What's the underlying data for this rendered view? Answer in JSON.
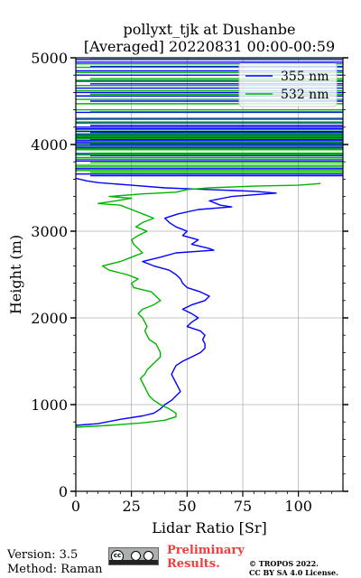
{
  "chart_data": {
    "type": "line",
    "title": [
      "pollyxt_tjk at Dushanbe",
      "[Averaged] 20220831 00:00-00:59"
    ],
    "xlabel": "Lidar Ratio [Sr]",
    "ylabel": "Height (m)",
    "xlim": [
      0,
      120
    ],
    "ylim": [
      0,
      5000
    ],
    "xticks": [
      0,
      25,
      50,
      75,
      100
    ],
    "yticks": [
      0,
      1000,
      2000,
      3000,
      4000,
      5000
    ],
    "grid": true,
    "legend_position": "top-right",
    "series": [
      {
        "name": "355 nm",
        "color": "#0000ff",
        "points": [
          [
            0,
            760
          ],
          [
            10,
            780
          ],
          [
            20,
            830
          ],
          [
            30,
            870
          ],
          [
            35,
            900
          ],
          [
            38,
            950
          ],
          [
            40,
            1000
          ],
          [
            43,
            1050
          ],
          [
            45,
            1100
          ],
          [
            47,
            1150
          ],
          [
            46,
            1200
          ],
          [
            45,
            1250
          ],
          [
            44,
            1300
          ],
          [
            43,
            1350
          ],
          [
            44,
            1400
          ],
          [
            45,
            1450
          ],
          [
            48,
            1500
          ],
          [
            52,
            1550
          ],
          [
            56,
            1600
          ],
          [
            58,
            1650
          ],
          [
            58,
            1700
          ],
          [
            57,
            1750
          ],
          [
            58,
            1800
          ],
          [
            56,
            1850
          ],
          [
            50,
            1900
          ],
          [
            52,
            1950
          ],
          [
            55,
            2000
          ],
          [
            52,
            2050
          ],
          [
            48,
            2100
          ],
          [
            52,
            2150
          ],
          [
            58,
            2200
          ],
          [
            60,
            2250
          ],
          [
            56,
            2300
          ],
          [
            50,
            2350
          ],
          [
            48,
            2400
          ],
          [
            47,
            2450
          ],
          [
            45,
            2500
          ],
          [
            42,
            2550
          ],
          [
            35,
            2600
          ],
          [
            30,
            2650
          ],
          [
            38,
            2700
          ],
          [
            45,
            2750
          ],
          [
            62,
            2780
          ],
          [
            60,
            2800
          ],
          [
            52,
            2850
          ],
          [
            55,
            2900
          ],
          [
            48,
            2950
          ],
          [
            50,
            3000
          ],
          [
            45,
            3050
          ],
          [
            42,
            3100
          ],
          [
            40,
            3150
          ],
          [
            46,
            3200
          ],
          [
            55,
            3250
          ],
          [
            70,
            3280
          ],
          [
            65,
            3300
          ],
          [
            60,
            3350
          ],
          [
            70,
            3400
          ],
          [
            80,
            3420
          ],
          [
            90,
            3440
          ],
          [
            80,
            3460
          ],
          [
            60,
            3480
          ],
          [
            40,
            3500
          ],
          [
            25,
            3530
          ],
          [
            10,
            3560
          ],
          [
            5,
            3580
          ],
          [
            0,
            3610
          ]
        ]
      },
      {
        "name": "532 nm",
        "color": "#00b400",
        "points": [
          [
            0,
            740
          ],
          [
            15,
            760
          ],
          [
            30,
            790
          ],
          [
            40,
            820
          ],
          [
            45,
            860
          ],
          [
            45,
            900
          ],
          [
            42,
            950
          ],
          [
            38,
            1000
          ],
          [
            35,
            1050
          ],
          [
            33,
            1100
          ],
          [
            32,
            1150
          ],
          [
            31,
            1200
          ],
          [
            30,
            1250
          ],
          [
            29,
            1300
          ],
          [
            31,
            1350
          ],
          [
            32,
            1400
          ],
          [
            34,
            1450
          ],
          [
            36,
            1500
          ],
          [
            38,
            1550
          ],
          [
            38,
            1600
          ],
          [
            37,
            1650
          ],
          [
            36,
            1700
          ],
          [
            33,
            1750
          ],
          [
            32,
            1800
          ],
          [
            31,
            1850
          ],
          [
            32,
            1900
          ],
          [
            31,
            1950
          ],
          [
            30,
            2000
          ],
          [
            28,
            2050
          ],
          [
            30,
            2100
          ],
          [
            35,
            2150
          ],
          [
            38,
            2200
          ],
          [
            36,
            2250
          ],
          [
            34,
            2300
          ],
          [
            26,
            2350
          ],
          [
            25,
            2400
          ],
          [
            28,
            2450
          ],
          [
            23,
            2500
          ],
          [
            15,
            2550
          ],
          [
            12,
            2600
          ],
          [
            20,
            2650
          ],
          [
            25,
            2700
          ],
          [
            30,
            2750
          ],
          [
            28,
            2800
          ],
          [
            26,
            2850
          ],
          [
            25,
            2900
          ],
          [
            28,
            2950
          ],
          [
            32,
            3000
          ],
          [
            27,
            3050
          ],
          [
            30,
            3100
          ],
          [
            35,
            3150
          ],
          [
            30,
            3200
          ],
          [
            25,
            3250
          ],
          [
            20,
            3300
          ],
          [
            10,
            3320
          ],
          [
            18,
            3350
          ],
          [
            25,
            3380
          ],
          [
            15,
            3400
          ],
          [
            30,
            3430
          ],
          [
            45,
            3450
          ],
          [
            50,
            3480
          ],
          [
            60,
            3500
          ],
          [
            80,
            3520
          ],
          [
            100,
            3530
          ],
          [
            110,
            3550
          ]
        ]
      }
    ],
    "upper_bursts": {
      "355 nm": [
        3640,
        3660,
        3720,
        3810,
        3870,
        3895,
        3960,
        3980,
        4000,
        4010,
        4030,
        4050,
        4060,
        4080,
        4100,
        4120,
        4140,
        4150,
        4180,
        4200,
        4220,
        4250,
        4300,
        4370,
        4500,
        4560,
        4600,
        4650,
        4700,
        4730,
        4800,
        4850,
        4900,
        4950,
        4980
      ],
      "532 nm": [
        3680,
        3700,
        3740,
        3760,
        3790,
        3830,
        3850,
        3880,
        3900,
        3940,
        3950,
        3990,
        4020,
        4070,
        4090,
        4110,
        4130,
        4170,
        4260,
        4290,
        4380,
        4400,
        4470,
        4520,
        4580,
        4620,
        4680,
        4740,
        4760,
        4830,
        4890,
        4930,
        5000
      ]
    }
  },
  "footer": {
    "version": "Version: 3.5",
    "method": "Method: Raman",
    "cc_icon": "cc-by-sa-icon",
    "preliminary_1": "Preliminary",
    "preliminary_2": "Results.",
    "copyright_1": "© TROPOS 2022.",
    "copyright_2": "CC BY SA 4.0 License."
  }
}
